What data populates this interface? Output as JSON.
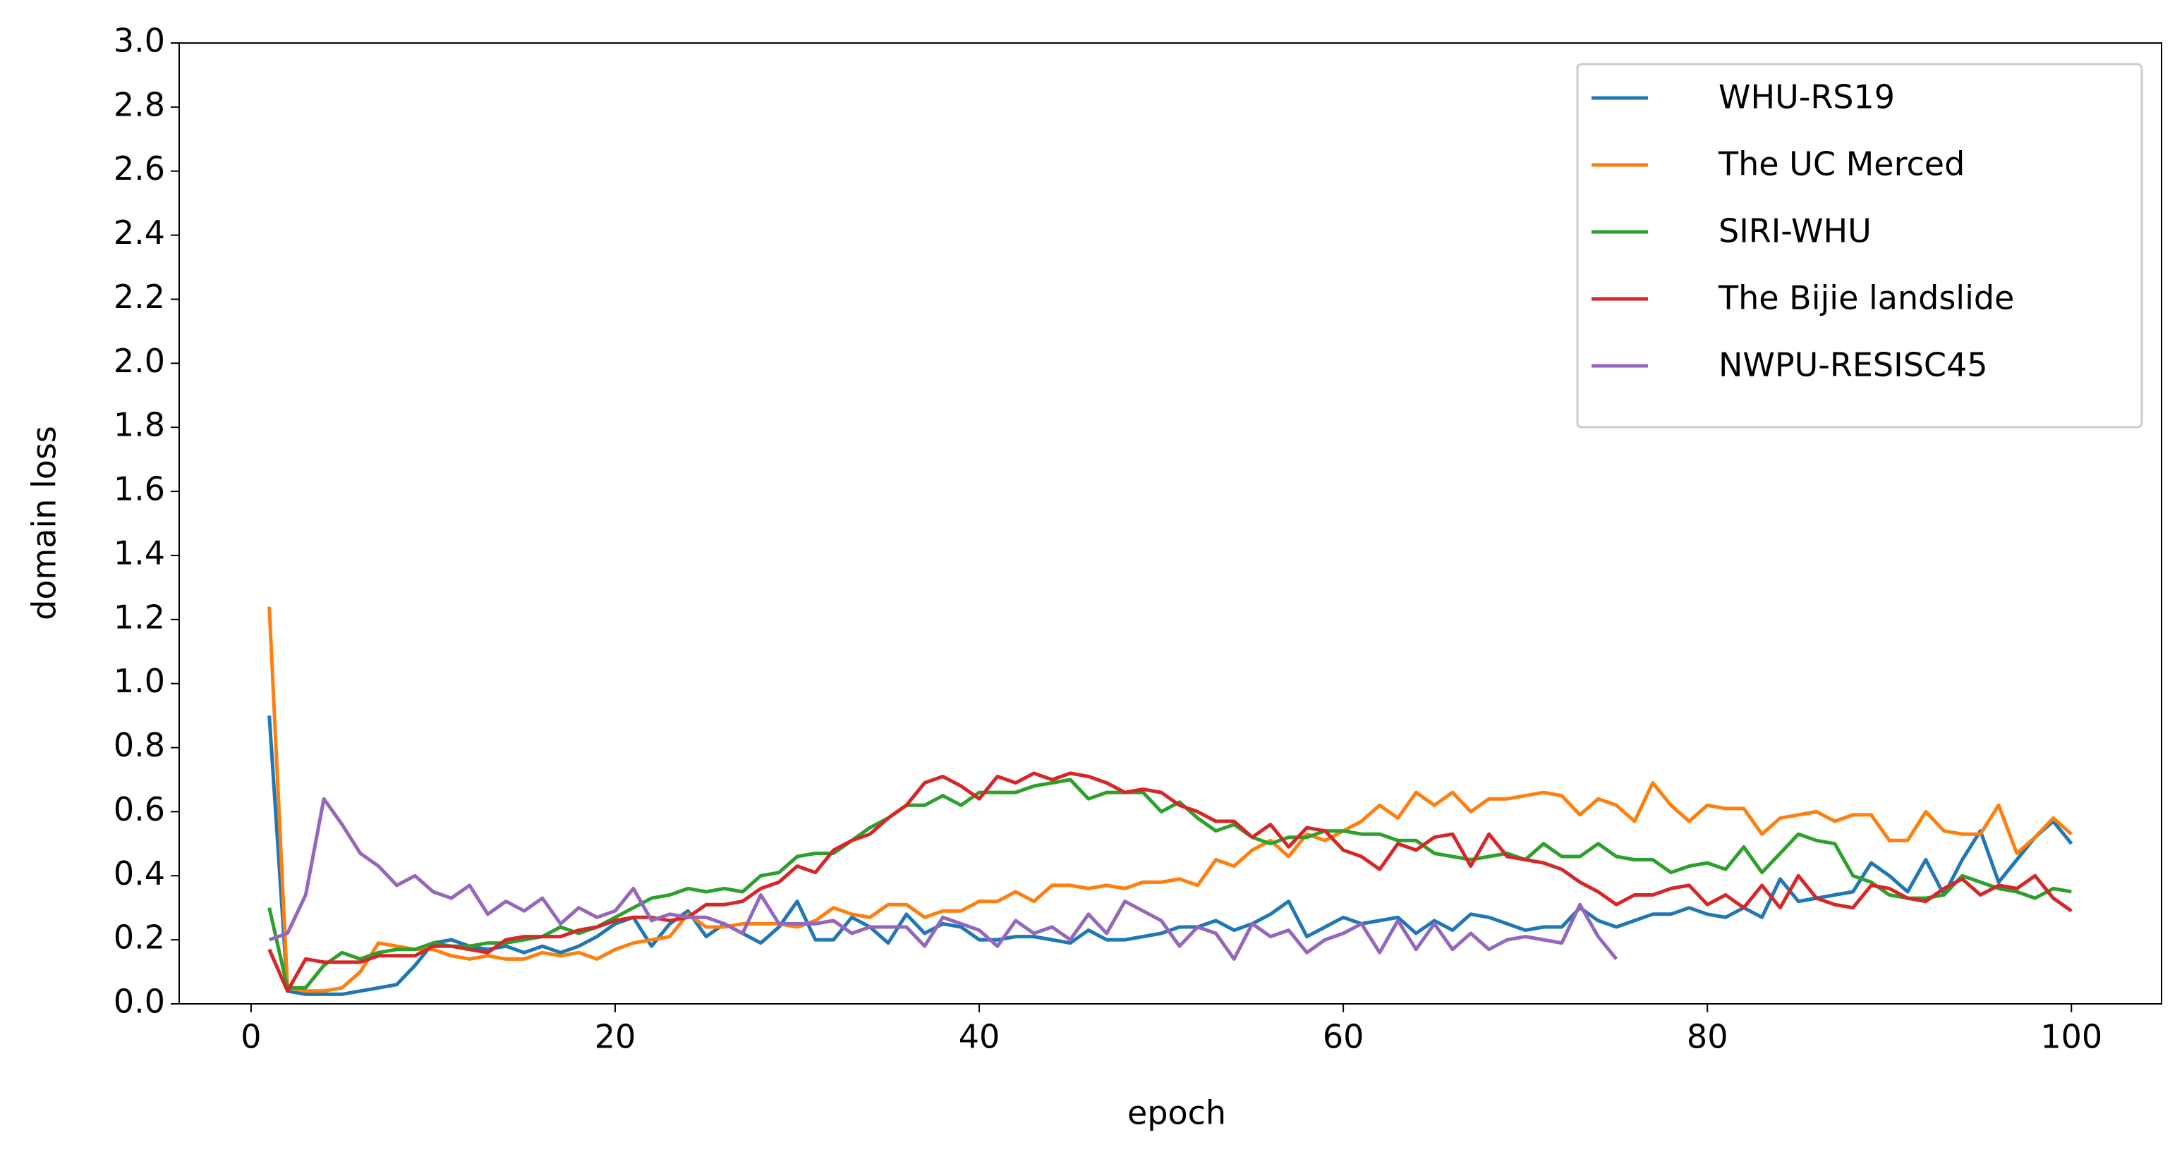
{
  "chart_data": {
    "type": "line",
    "x_label": "epoch",
    "y_label": "domain loss",
    "xlim": [
      -3.95,
      104.95
    ],
    "ylim": [
      0,
      3.0
    ],
    "xticks": [
      0,
      20,
      40,
      60,
      80,
      100
    ],
    "yticks": [
      {
        "value": 0,
        "label": "0.0"
      },
      0.2,
      0.4,
      0.6,
      0.8,
      {
        "value": 1,
        "label": "1.0"
      },
      1.2,
      1.4,
      1.6,
      1.8,
      {
        "value": 2,
        "label": "2.0"
      },
      2.2,
      2.4,
      2.6,
      2.8,
      {
        "value": 3,
        "label": "3.0"
      }
    ],
    "legend": "upper right",
    "x": [
      1,
      2,
      3,
      4,
      5,
      6,
      7,
      8,
      9,
      10,
      11,
      12,
      13,
      14,
      15,
      16,
      17,
      18,
      19,
      20,
      21,
      22,
      23,
      24,
      25,
      26,
      27,
      28,
      29,
      30,
      31,
      32,
      33,
      34,
      35,
      36,
      37,
      38,
      39,
      40,
      41,
      42,
      43,
      44,
      45,
      46,
      47,
      48,
      49,
      50,
      51,
      52,
      53,
      54,
      55,
      56,
      57,
      58,
      59,
      60,
      61,
      62,
      63,
      64,
      65,
      66,
      67,
      68,
      69,
      70,
      71,
      72,
      73,
      74,
      75,
      76,
      77,
      78,
      79,
      80,
      81,
      82,
      83,
      84,
      85,
      86,
      87,
      88,
      89,
      90,
      91,
      92,
      93,
      94,
      95,
      96,
      97,
      98,
      99,
      100
    ],
    "series": [
      {
        "name": "WHU-RS19",
        "color": "#1f77b4",
        "values": [
          0.9,
          0.04,
          0.03,
          0.03,
          0.03,
          0.04,
          0.05,
          0.06,
          0.12,
          0.19,
          0.2,
          0.18,
          0.17,
          0.18,
          0.16,
          0.18,
          0.16,
          0.18,
          0.21,
          0.25,
          0.27,
          0.18,
          0.25,
          0.29,
          0.21,
          0.25,
          0.22,
          0.19,
          0.24,
          0.32,
          0.2,
          0.2,
          0.27,
          0.24,
          0.19,
          0.28,
          0.22,
          0.25,
          0.24,
          0.2,
          0.2,
          0.21,
          0.21,
          0.2,
          0.19,
          0.23,
          0.2,
          0.2,
          0.21,
          0.22,
          0.24,
          0.24,
          0.26,
          0.23,
          0.25,
          0.28,
          0.32,
          0.21,
          0.24,
          0.27,
          0.25,
          0.26,
          0.27,
          0.22,
          0.26,
          0.23,
          0.28,
          0.27,
          0.25,
          0.23,
          0.24,
          0.24,
          0.3,
          0.26,
          0.24,
          0.26,
          0.28,
          0.28,
          0.3,
          0.28,
          0.27,
          0.3,
          0.27,
          0.39,
          0.32,
          0.33,
          0.34,
          0.35,
          0.44,
          0.4,
          0.35,
          0.45,
          0.34,
          0.45,
          0.54,
          0.38,
          0.45,
          0.52,
          0.57,
          0.5
        ]
      },
      {
        "name": "The UC Merced",
        "color": "#ff7f0e",
        "values": [
          1.24,
          0.05,
          0.04,
          0.04,
          0.05,
          0.1,
          0.19,
          0.18,
          0.17,
          0.17,
          0.15,
          0.14,
          0.15,
          0.14,
          0.14,
          0.16,
          0.15,
          0.16,
          0.14,
          0.17,
          0.19,
          0.2,
          0.21,
          0.28,
          0.24,
          0.24,
          0.25,
          0.25,
          0.25,
          0.24,
          0.26,
          0.3,
          0.28,
          0.27,
          0.31,
          0.31,
          0.27,
          0.29,
          0.29,
          0.32,
          0.32,
          0.35,
          0.32,
          0.37,
          0.37,
          0.36,
          0.37,
          0.36,
          0.38,
          0.38,
          0.39,
          0.37,
          0.45,
          0.43,
          0.48,
          0.51,
          0.46,
          0.53,
          0.51,
          0.54,
          0.57,
          0.62,
          0.58,
          0.66,
          0.62,
          0.66,
          0.6,
          0.64,
          0.64,
          0.65,
          0.66,
          0.65,
          0.59,
          0.64,
          0.62,
          0.57,
          0.69,
          0.62,
          0.57,
          0.62,
          0.61,
          0.61,
          0.53,
          0.58,
          0.59,
          0.6,
          0.57,
          0.59,
          0.59,
          0.51,
          0.51,
          0.6,
          0.54,
          0.53,
          0.53,
          0.62,
          0.47,
          0.52,
          0.58,
          0.53
        ]
      },
      {
        "name": "SIRI-WHU",
        "color": "#2ca02c",
        "values": [
          0.3,
          0.05,
          0.05,
          0.12,
          0.16,
          0.14,
          0.16,
          0.17,
          0.17,
          0.19,
          0.18,
          0.18,
          0.19,
          0.19,
          0.2,
          0.21,
          0.24,
          0.22,
          0.24,
          0.27,
          0.3,
          0.33,
          0.34,
          0.36,
          0.35,
          0.36,
          0.35,
          0.4,
          0.41,
          0.46,
          0.47,
          0.47,
          0.51,
          0.55,
          0.58,
          0.62,
          0.62,
          0.65,
          0.62,
          0.66,
          0.66,
          0.66,
          0.68,
          0.69,
          0.7,
          0.64,
          0.66,
          0.66,
          0.66,
          0.6,
          0.63,
          0.58,
          0.54,
          0.56,
          0.52,
          0.5,
          0.52,
          0.52,
          0.54,
          0.54,
          0.53,
          0.53,
          0.51,
          0.51,
          0.47,
          0.46,
          0.45,
          0.46,
          0.47,
          0.45,
          0.5,
          0.46,
          0.46,
          0.5,
          0.46,
          0.45,
          0.45,
          0.41,
          0.43,
          0.44,
          0.42,
          0.49,
          0.41,
          0.47,
          0.53,
          0.51,
          0.5,
          0.4,
          0.38,
          0.34,
          0.33,
          0.33,
          0.34,
          0.4,
          0.38,
          0.36,
          0.35,
          0.33,
          0.36,
          0.35
        ]
      },
      {
        "name": "The Bijie landslide",
        "color": "#d62728",
        "values": [
          0.17,
          0.04,
          0.14,
          0.13,
          0.13,
          0.13,
          0.15,
          0.15,
          0.15,
          0.18,
          0.18,
          0.17,
          0.16,
          0.2,
          0.21,
          0.21,
          0.21,
          0.23,
          0.24,
          0.26,
          0.27,
          0.27,
          0.26,
          0.27,
          0.31,
          0.31,
          0.32,
          0.36,
          0.38,
          0.43,
          0.41,
          0.48,
          0.51,
          0.53,
          0.58,
          0.62,
          0.69,
          0.71,
          0.68,
          0.64,
          0.71,
          0.69,
          0.72,
          0.7,
          0.72,
          0.71,
          0.69,
          0.66,
          0.67,
          0.66,
          0.62,
          0.6,
          0.57,
          0.57,
          0.52,
          0.56,
          0.49,
          0.55,
          0.54,
          0.48,
          0.46,
          0.42,
          0.5,
          0.48,
          0.52,
          0.53,
          0.43,
          0.53,
          0.46,
          0.45,
          0.44,
          0.42,
          0.38,
          0.35,
          0.31,
          0.34,
          0.34,
          0.36,
          0.37,
          0.31,
          0.34,
          0.3,
          0.37,
          0.3,
          0.4,
          0.33,
          0.31,
          0.3,
          0.37,
          0.36,
          0.33,
          0.32,
          0.36,
          0.39,
          0.34,
          0.37,
          0.36,
          0.4,
          0.33,
          0.29
        ]
      },
      {
        "name": "NWPU-RESISC45",
        "color": "#9467bd",
        "values": [
          0.2,
          0.22,
          0.34,
          0.64,
          0.56,
          0.47,
          0.43,
          0.37,
          0.4,
          0.35,
          0.33,
          0.37,
          0.28,
          0.32,
          0.29,
          0.33,
          0.25,
          0.3,
          0.27,
          0.29,
          0.36,
          0.26,
          0.28,
          0.27,
          0.27,
          0.25,
          0.22,
          0.34,
          0.25,
          0.25,
          0.25,
          0.26,
          0.22,
          0.24,
          0.24,
          0.24,
          0.18,
          0.27,
          0.25,
          0.23,
          0.18,
          0.26,
          0.22,
          0.24,
          0.2,
          0.28,
          0.22,
          0.32,
          0.29,
          0.26,
          0.18,
          0.24,
          0.22,
          0.14,
          0.25,
          0.21,
          0.23,
          0.16,
          0.2,
          0.22,
          0.25,
          0.16,
          0.26,
          0.17,
          0.25,
          0.17,
          0.22,
          0.17,
          0.2,
          0.21,
          0.2,
          0.19,
          0.31,
          0.21,
          0.14,
          null,
          null,
          null,
          null,
          null,
          null,
          null,
          null,
          null,
          null,
          null,
          null,
          null,
          null,
          null,
          null,
          null,
          null,
          null,
          null,
          null,
          null,
          null,
          null,
          null
        ]
      }
    ]
  }
}
